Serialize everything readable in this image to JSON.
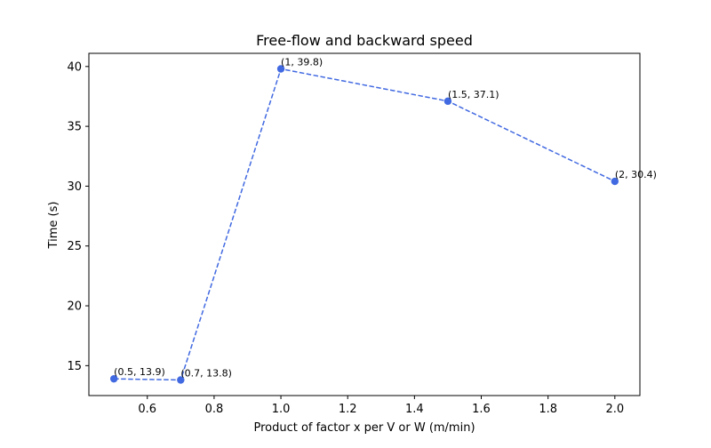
{
  "chart_data": {
    "type": "line",
    "title": "Free-flow and backward speed",
    "xlabel": "Product of factor x per V or W  (m/min)",
    "ylabel": "Time (s)",
    "xlim": [
      0.425,
      2.075
    ],
    "ylim": [
      12.5,
      41.1
    ],
    "x_ticks": [
      0.6,
      0.8,
      1.0,
      1.2,
      1.4,
      1.6,
      1.8,
      2.0
    ],
    "x_tick_labels": [
      "0.6",
      "0.8",
      "1.0",
      "1.2",
      "1.4",
      "1.6",
      "1.8",
      "2.0"
    ],
    "y_ticks": [
      15,
      20,
      25,
      30,
      35,
      40
    ],
    "y_tick_labels": [
      "15",
      "20",
      "25",
      "30",
      "35",
      "40"
    ],
    "grid": false,
    "series": [
      {
        "color": "#4169e1",
        "line_style": "dashed",
        "marker": "circle",
        "x": [
          0.5,
          0.7,
          1,
          1.5,
          2
        ],
        "y": [
          13.9,
          13.8,
          39.8,
          37.1,
          30.4
        ],
        "labels": [
          "(0.5, 13.9)",
          "(0.7, 13.8)",
          "(1, 39.8)",
          "(1.5, 37.1)",
          "(2, 30.4)"
        ]
      }
    ]
  }
}
